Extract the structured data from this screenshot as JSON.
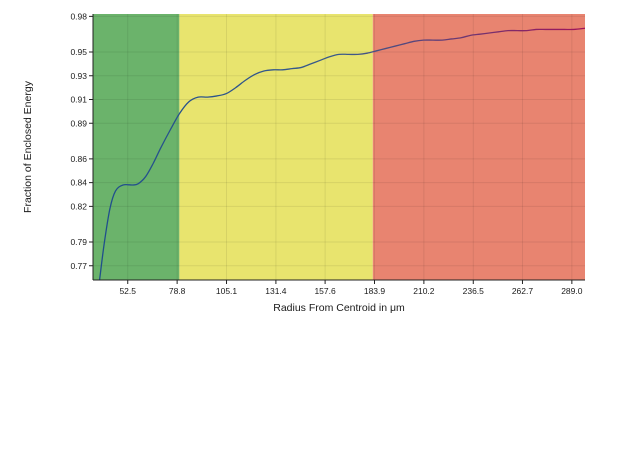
{
  "chart_data": {
    "type": "line",
    "title": "",
    "xlabel": "Radius From Centroid in μm",
    "ylabel": "Fraction of Enclosed Energy",
    "xlim": [
      34,
      296
    ],
    "ylim": [
      0.758,
      0.982
    ],
    "x_ticks": [
      52.5,
      78.8,
      105.1,
      131.4,
      157.6,
      183.9,
      210.2,
      236.5,
      262.7,
      289.0
    ],
    "x_tick_labels": [
      "52.5",
      "78.8",
      "105.1",
      "131.4",
      "157.6",
      "183.9",
      "210.2",
      "236.5",
      "262.7",
      "289.0"
    ],
    "y_ticks": [
      0.77,
      0.79,
      0.82,
      0.84,
      0.86,
      0.89,
      0.91,
      0.93,
      0.95,
      0.98
    ],
    "y_tick_labels": [
      "0.77",
      "0.79",
      "0.82",
      "0.84",
      "0.86",
      "0.89",
      "0.91",
      "0.93",
      "0.95",
      "0.98"
    ],
    "grid": true,
    "legend": "none",
    "bands": [
      {
        "x_start": 34,
        "x_end": 80,
        "color": "#6bb36b"
      },
      {
        "x_start": 80,
        "x_end": 183,
        "color": "#e8e46e"
      },
      {
        "x_start": 183,
        "x_end": 296,
        "color": "#e88470"
      }
    ],
    "series": [
      {
        "color_start": "#1f4e8c",
        "color_end": "#a0145a",
        "x": [
          37.5,
          40,
          43,
          46,
          50,
          55,
          58,
          62,
          66,
          70,
          75,
          80,
          85,
          90,
          95,
          100,
          105,
          110,
          115,
          120,
          125,
          130,
          135,
          140,
          145,
          150,
          155,
          160,
          165,
          170,
          175,
          180,
          185,
          190,
          195,
          200,
          205,
          210,
          215,
          220,
          225,
          230,
          235,
          240,
          245,
          250,
          255,
          260,
          265,
          270,
          275,
          280,
          285,
          290,
          296
        ],
        "y": [
          0.758,
          0.789,
          0.818,
          0.833,
          0.838,
          0.838,
          0.839,
          0.845,
          0.856,
          0.869,
          0.884,
          0.898,
          0.908,
          0.912,
          0.912,
          0.913,
          0.915,
          0.92,
          0.926,
          0.931,
          0.934,
          0.935,
          0.935,
          0.936,
          0.937,
          0.94,
          0.943,
          0.946,
          0.948,
          0.948,
          0.948,
          0.949,
          0.951,
          0.953,
          0.955,
          0.957,
          0.959,
          0.96,
          0.96,
          0.96,
          0.961,
          0.962,
          0.964,
          0.965,
          0.966,
          0.967,
          0.968,
          0.968,
          0.968,
          0.969,
          0.969,
          0.969,
          0.969,
          0.969,
          0.97
        ]
      }
    ]
  }
}
